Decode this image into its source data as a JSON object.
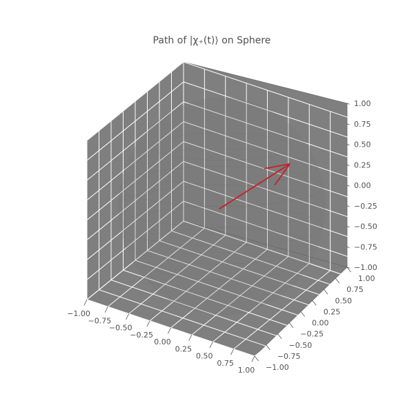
{
  "chart_data": {
    "type": "quiver3d",
    "title": "Path of |χ₊(t)⟩ on Sphere",
    "xlabel": "",
    "ylabel": "",
    "zlabel": "",
    "xlim": [
      -1.0,
      1.0
    ],
    "ylim": [
      -1.0,
      1.0
    ],
    "zlim": [
      -1.0,
      1.0
    ],
    "x_ticks": [
      "−1.00",
      "−0.75",
      "−0.50",
      "−0.25",
      "0.00",
      "0.25",
      "0.50",
      "0.75",
      "1.00"
    ],
    "y_ticks": [
      "−1.00",
      "−0.75",
      "−0.50",
      "−0.25",
      "0.00",
      "0.25",
      "0.50",
      "0.75",
      "1.00"
    ],
    "z_ticks": [
      "−1.00",
      "−0.75",
      "−0.50",
      "−0.25",
      "0.00",
      "0.25",
      "0.50",
      "0.75",
      "1.00"
    ],
    "grid": true,
    "sphere": {
      "radius": 1,
      "color": "#707070"
    },
    "arrow": {
      "origin": [
        0,
        0,
        0
      ],
      "vector": [
        0.5,
        0.6,
        0.45
      ],
      "color": "#c0272d"
    },
    "pane_color": "#7f7f7f",
    "grid_color": "#ffffff"
  }
}
